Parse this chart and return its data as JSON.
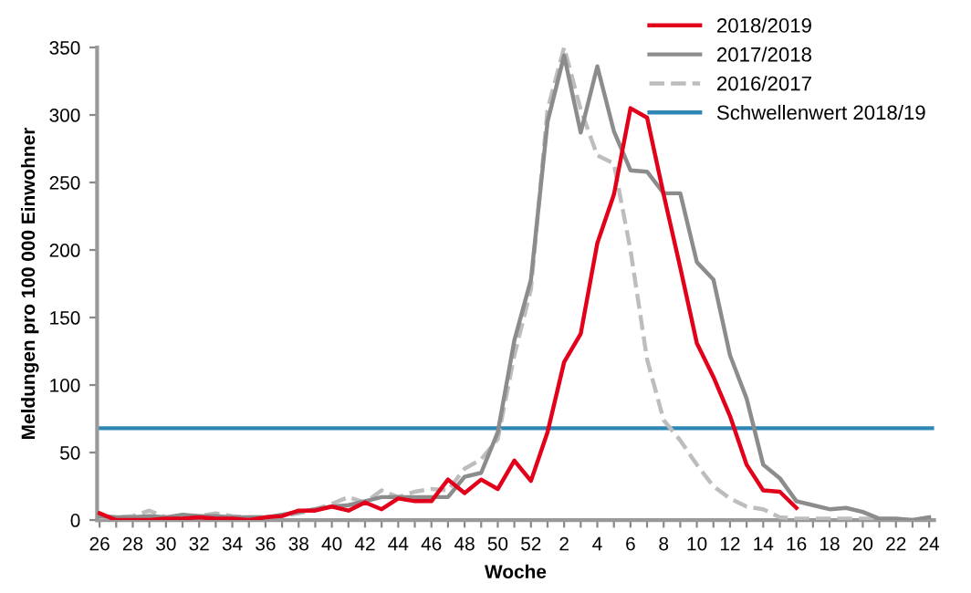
{
  "chart_data": {
    "type": "line",
    "xlabel": "Woche",
    "ylabel": "Meldungen pro 100 000 Einwohner",
    "categories": [
      "26",
      null,
      "28",
      null,
      "30",
      null,
      "32",
      null,
      "34",
      null,
      "36",
      null,
      "38",
      null,
      "40",
      null,
      "42",
      null,
      "44",
      null,
      "46",
      null,
      "48",
      null,
      "50",
      null,
      "52",
      null,
      "2",
      null,
      "4",
      null,
      "6",
      null,
      "8",
      null,
      "10",
      null,
      "12",
      null,
      "14",
      null,
      "16",
      null,
      "18",
      null,
      "20",
      null,
      "22",
      null,
      "24"
    ],
    "series": [
      {
        "name": "2018/2019",
        "color": "#e2001a",
        "line_style": "solid",
        "values": [
          5,
          0,
          0,
          0,
          1,
          1,
          2,
          1,
          1,
          0,
          2,
          3,
          7,
          7,
          10,
          7,
          13,
          8,
          16,
          14,
          14,
          30,
          20,
          30,
          23,
          44,
          29,
          65,
          117,
          138,
          205,
          241,
          305,
          298,
          241,
          187,
          131,
          106,
          77,
          41,
          22,
          21,
          9,
          null,
          null,
          null,
          null,
          null,
          null,
          null,
          null
        ]
      },
      {
        "name": "2017/2018",
        "color": "#8c8c8c",
        "line_style": "solid",
        "values": [
          3,
          2,
          2,
          3,
          2,
          4,
          3,
          3,
          2,
          2,
          2,
          4,
          6,
          8,
          10,
          11,
          14,
          17,
          17,
          17,
          17,
          17,
          32,
          35,
          65,
          133,
          178,
          295,
          344,
          287,
          336,
          288,
          259,
          258,
          242,
          242,
          191,
          178,
          122,
          90,
          41,
          31,
          14,
          11,
          8,
          9,
          6,
          1,
          1,
          0,
          2
        ]
      },
      {
        "name": "2016/2017",
        "color": "#bdbdbd",
        "line_style": "dashed",
        "values": [
          2,
          2,
          3,
          7,
          2,
          3,
          3,
          5,
          3,
          2,
          2,
          3,
          5,
          8,
          12,
          17,
          13,
          22,
          17,
          21,
          23,
          22,
          38,
          45,
          60,
          122,
          171,
          304,
          350,
          304,
          270,
          264,
          200,
          119,
          74,
          59,
          41,
          25,
          16,
          10,
          8,
          2,
          1,
          1,
          1,
          1,
          1,
          1,
          0,
          0,
          0
        ]
      }
    ],
    "ref_lines": [
      {
        "axis": "y",
        "value": 68,
        "label": "Schwellenwert 2018/19",
        "color": "#2e86b5",
        "line_style": "solid"
      }
    ],
    "ylim": [
      0,
      350
    ],
    "yticks": [
      0,
      50,
      100,
      150,
      200,
      250,
      300,
      350
    ],
    "grid": false,
    "legend": "top right",
    "marker": "none"
  }
}
